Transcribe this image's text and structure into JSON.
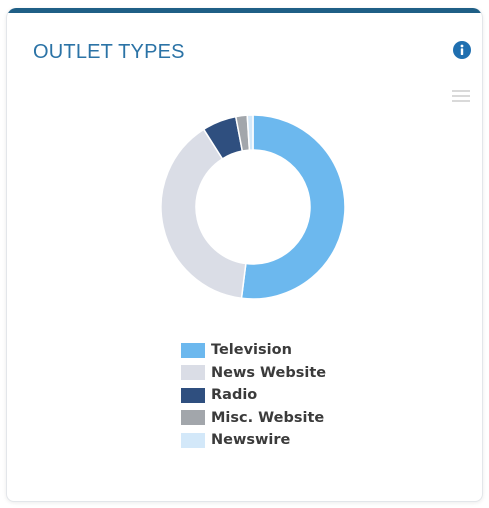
{
  "widget": {
    "title": "OUTLET TYPES",
    "info_icon": "info-circle-icon",
    "menu_icon": "hamburger-menu-icon",
    "colors": {
      "top_bar": "#1f5f86",
      "title": "#2b73a6",
      "info_icon": "#1f6fb0",
      "menu_icon": "#d9d9d9"
    }
  },
  "chart_data": {
    "type": "pie",
    "variant": "donut",
    "values_unit": "percent (estimated)",
    "series": [
      {
        "name": "Television",
        "value": 52,
        "color": "#6cb8ee"
      },
      {
        "name": "News Website",
        "value": 39,
        "color": "#dadde6"
      },
      {
        "name": "Radio",
        "value": 6,
        "color": "#2f4f7f"
      },
      {
        "name": "Misc. Website",
        "value": 2,
        "color": "#a2a6ab"
      },
      {
        "name": "Newswire",
        "value": 1,
        "color": "#d3e8f9"
      }
    ],
    "legend_position": "bottom-center"
  }
}
